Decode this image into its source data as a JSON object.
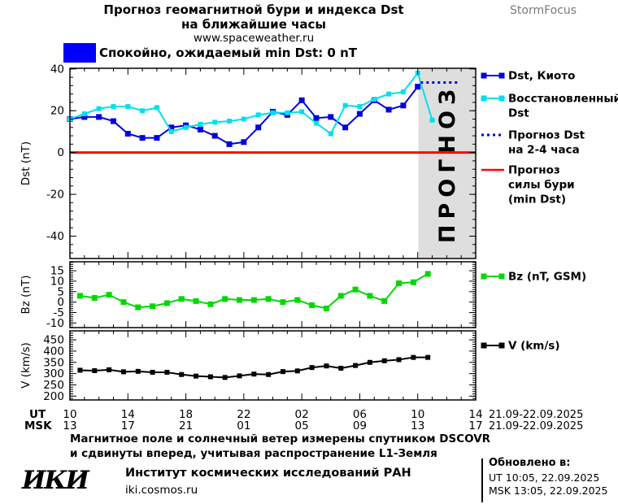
{
  "colors": {
    "accent_box": "#0000ff",
    "kyoto_blue": "#0000e0",
    "restored_cyan": "#00e0ee",
    "storm_red": "#ff0000",
    "bz_green": "#00d800",
    "v_black": "#000000",
    "band_gray": "#dedede",
    "band_text": "#c0c0c0",
    "brand_gray": "#7a7a7a"
  },
  "header": {
    "title_line1": "Прогноз геомагнитной бури и индекса Dst",
    "title_line2": "на ближайшие часы",
    "title_line3": "www.spaceweather.ru",
    "brand": "StormFocus"
  },
  "status": {
    "text": "Спокойно, ожидаемый min Dst: 0 nT"
  },
  "chart_data": {
    "type": "line",
    "xaxis": {
      "hours_span": 28,
      "major_every": 4,
      "ut_label": "UT",
      "msk_label": "MSK",
      "ut_ticks": [
        "10",
        "14",
        "18",
        "22",
        "02",
        "06",
        "10",
        "14"
      ],
      "msk_ticks": [
        "13",
        "17",
        "21",
        "01",
        "05",
        "09",
        "13",
        "17"
      ],
      "date_range_ut": "21.09-22.09.2025",
      "date_range_msk": "21.09-22.09.2025"
    },
    "panels": [
      {
        "key": "dst",
        "ylabel": "Dst (nT)",
        "ylim": [
          -50.7,
          40.3
        ],
        "yticks": [
          40,
          20,
          0,
          -20,
          -40
        ],
        "yminor": 4,
        "band": {
          "x0": 24.05,
          "x1": 28,
          "label": "ПРОГНОЗ"
        },
        "series": [
          {
            "name": "Прогноз силы бури (min Dst)",
            "color": "#ff0000",
            "width": 3,
            "marker": 0,
            "x_start": 0,
            "x_step": 28,
            "values": [
              0,
              0
            ]
          },
          {
            "name": "Dst, Киото",
            "color": "#0000e0",
            "width": 2,
            "marker": 7,
            "x_start": 0,
            "x_step": 1,
            "values": [
              16,
              17,
              17,
              15,
              9,
              7,
              7,
              12,
              13,
              11,
              8,
              4,
              5,
              12,
              19.5,
              18,
              25,
              16.5,
              17,
              12,
              18.5,
              25,
              20.5,
              22.5,
              31.5
            ]
          },
          {
            "name": "Восстановленный Dst",
            "color": "#00e0ee",
            "width": 2,
            "marker": 6,
            "x_start": 0,
            "x_step": 1,
            "values": [
              16,
              18.5,
              21,
              22,
              22,
              20,
              21.5,
              10,
              12,
              13.5,
              14.5,
              15,
              16,
              18,
              19,
              19,
              19.5,
              14,
              9,
              22.5,
              22,
              25.5,
              28,
              29,
              38,
              15.5
            ]
          },
          {
            "name": "Прогноз Dst на 2-4 часа",
            "color": "#0000e0",
            "width": 3,
            "marker": 0,
            "dash": "3 4",
            "x_start": 24.2,
            "x_step": 2.7,
            "values": [
              33.5,
              33.5
            ]
          }
        ],
        "legend": [
          {
            "marker": "squares",
            "color": "#0000e0",
            "lines": [
              "Dst, Киото"
            ]
          },
          {
            "marker": "squares",
            "color": "#00e0ee",
            "lines": [
              "Восстановленный",
              "Dst"
            ]
          },
          {
            "marker": "dashed",
            "color": "#0000e0",
            "lines": [
              "Прогноз Dst",
              "на 2-4 часа"
            ]
          },
          {
            "marker": "line",
            "color": "#ff0000",
            "lines": [
              "Прогноз",
              "силы бури",
              "(min Dst)"
            ]
          }
        ]
      },
      {
        "key": "bz",
        "ylabel": "Bz (nT)",
        "ylim": [
          -12.2,
          19.3
        ],
        "yticks": [
          15,
          10,
          5,
          0,
          -5,
          -10
        ],
        "yminor": 1,
        "series": [
          {
            "name": "Bz (nT, GSM)",
            "color": "#00d800",
            "width": 2,
            "marker": 7,
            "x_start": 0.7,
            "x_step": 1,
            "values": [
              3,
              2,
              3.5,
              0,
              -2.5,
              -2,
              -0.5,
              1.5,
              0.5,
              -1,
              1.5,
              1,
              1,
              1.5,
              0,
              1,
              -1.5,
              -3,
              3,
              6,
              3,
              0.5,
              9,
              9.5,
              13.5
            ]
          }
        ],
        "legend": [
          {
            "marker": "squares",
            "color": "#00d800",
            "lines": [
              "Bz (nT, GSM)"
            ]
          }
        ]
      },
      {
        "key": "v",
        "ylabel": "V (km/s)",
        "ylim": [
          183,
          490
        ],
        "yticks": [
          450,
          400,
          350,
          300,
          250,
          200
        ],
        "yminor": 10,
        "series": [
          {
            "name": "V (km/s)",
            "color": "#000000",
            "width": 2,
            "marker": 6,
            "x_start": 0.7,
            "x_step": 1,
            "values": [
              315,
              313,
              317,
              308,
              310,
              306,
              306,
              296,
              289,
              286,
              283,
              290,
              298,
              296,
              309,
              312,
              327,
              334,
              324,
              336,
              350,
              357,
              362,
              372,
              372
            ]
          }
        ],
        "legend": [
          {
            "marker": "squares",
            "color": "#000000",
            "lines": [
              "V (km/s)"
            ]
          }
        ]
      }
    ]
  },
  "footer": {
    "note_line1": "Магнитное поле и солнечный ветер измерены спутником DSCOVR",
    "note_line2": "и сдвинуты вперед, учитывая распространение L1-Земля",
    "logo": "ИКИ",
    "org": "Институт космических исследований РАН",
    "site": "iki.cosmos.ru",
    "updated_title": "Обновлено в:",
    "updated_ut": "UT  10:05, 22.09.2025",
    "updated_msk": "MSK 13:05, 22.09.2025"
  }
}
